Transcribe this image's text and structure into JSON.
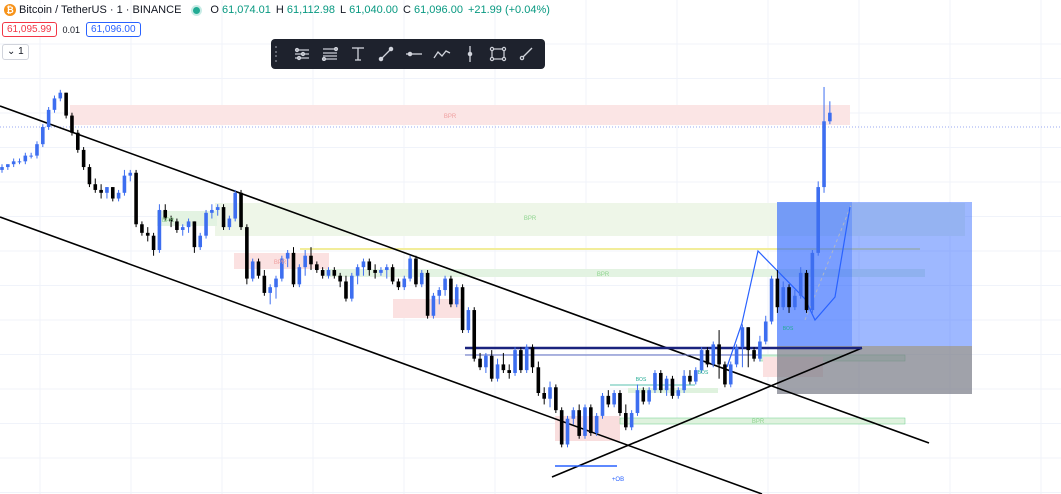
{
  "header": {
    "symbol": "Bitcoin / TetherUS · 1 · BINANCE",
    "open_label": "O",
    "open": "61,074.01",
    "high_label": "H",
    "high": "61,112.98",
    "low_label": "L",
    "low": "61,040.00",
    "close_label": "C",
    "close": "61,096.00",
    "change": "+21.99 (+0.04%)",
    "sell_price": "61,095.99",
    "spread": "0.01",
    "buy_price": "61,096.00",
    "interval_toggle": "1"
  },
  "colors": {
    "up": "#3d6ef0",
    "down": "#000000",
    "bpr": "#f4b9b9",
    "bullish_zone": "#dff2de",
    "position_target": "#2962ff",
    "position_stop": "#787b86",
    "trendline": "#000000"
  },
  "toolbar": {
    "tools": [
      "pitchfork-icon",
      "fib-retracement-icon",
      "text-icon",
      "trend-line-icon",
      "horizontal-line-icon",
      "path-icon",
      "vertical-line-icon",
      "rectangle-icon",
      "ray-icon"
    ]
  },
  "chart_data": {
    "type": "candlestick",
    "title": "Bitcoin / TetherUS · 1 · BINANCE",
    "xlabel": "",
    "ylabel": "",
    "y_scale": "price (no axis shown)",
    "ylim": [
      0,
      100
    ],
    "xlim": [
      0,
      150
    ],
    "grid": true,
    "annotations": [
      "BPR",
      "BPR",
      "BPR",
      "BPR",
      "BPR",
      "BPR",
      "BOS",
      "BOS",
      "BOS",
      "+OB"
    ],
    "candles": [
      [
        0,
        28,
        30,
        27,
        29
      ],
      [
        1,
        29,
        30,
        28,
        30
      ],
      [
        2,
        30,
        32,
        29,
        31
      ],
      [
        3,
        31,
        32,
        30,
        31
      ],
      [
        4,
        31,
        34,
        30,
        33
      ],
      [
        5,
        33,
        34,
        32,
        33
      ],
      [
        6,
        33,
        38,
        32,
        37
      ],
      [
        7,
        37,
        44,
        36,
        43
      ],
      [
        8,
        43,
        50,
        42,
        49
      ],
      [
        9,
        49,
        54,
        48,
        53
      ],
      [
        10,
        53,
        56,
        52,
        55
      ],
      [
        11,
        55,
        55,
        46,
        47
      ],
      [
        12,
        47,
        48,
        40,
        41
      ],
      [
        13,
        41,
        42,
        34,
        35
      ],
      [
        14,
        35,
        36,
        28,
        29
      ],
      [
        15,
        29,
        30,
        22,
        23
      ],
      [
        16,
        23,
        25,
        20,
        21
      ],
      [
        17,
        21,
        23,
        18,
        20
      ],
      [
        18,
        20,
        22,
        18,
        22
      ],
      [
        19,
        22,
        22,
        17,
        18
      ],
      [
        20,
        18,
        21,
        17,
        20
      ],
      [
        21,
        20,
        28,
        19,
        26
      ],
      [
        22,
        26,
        28,
        24,
        27
      ],
      [
        23,
        27,
        28,
        8,
        9
      ],
      [
        24,
        9,
        10,
        5,
        6
      ],
      [
        25,
        6,
        8,
        3,
        5
      ],
      [
        26,
        5,
        6,
        -2,
        0
      ],
      [
        27,
        0,
        16,
        -1,
        14
      ],
      [
        28,
        14,
        16,
        10,
        11
      ],
      [
        29,
        11,
        12,
        8,
        10
      ],
      [
        30,
        10,
        11,
        6,
        7
      ],
      [
        31,
        7,
        9,
        5,
        8
      ],
      [
        32,
        8,
        11,
        6,
        10
      ],
      [
        33,
        10,
        10,
        -1,
        1
      ],
      [
        34,
        1,
        6,
        0,
        5
      ],
      [
        35,
        5,
        14,
        4,
        13
      ],
      [
        36,
        13,
        16,
        11,
        14
      ],
      [
        37,
        14,
        16,
        12,
        15
      ],
      [
        38,
        15,
        16,
        7,
        8
      ],
      [
        39,
        8,
        12,
        7,
        11
      ],
      [
        40,
        11,
        21,
        10,
        20
      ],
      [
        41,
        20,
        21,
        7,
        8
      ],
      [
        42,
        8,
        9,
        -12,
        -10
      ],
      [
        43,
        -10,
        -3,
        -11,
        -4
      ],
      [
        44,
        -4,
        -3,
        -10,
        -9
      ],
      [
        45,
        -9,
        -7,
        -16,
        -15
      ],
      [
        46,
        -15,
        -12,
        -19,
        -13
      ],
      [
        47,
        -13,
        -9,
        -17,
        -10
      ],
      [
        48,
        -10,
        -2,
        -11,
        -3
      ],
      [
        49,
        -3,
        0,
        -6,
        -1
      ],
      [
        50,
        -1,
        1,
        -13,
        -12
      ],
      [
        51,
        -12,
        -5,
        -13,
        -6
      ],
      [
        52,
        -6,
        0,
        -9,
        -2
      ],
      [
        53,
        -2,
        1,
        -7,
        -5
      ],
      [
        54,
        -5,
        -4,
        -8,
        -7
      ],
      [
        55,
        -7,
        -6,
        -10,
        -9
      ],
      [
        56,
        -9,
        -6,
        -10,
        -7
      ],
      [
        57,
        -7,
        -6,
        -10,
        -9
      ],
      [
        58,
        -9,
        -8,
        -13,
        -11
      ],
      [
        59,
        -11,
        -9,
        -18,
        -17
      ],
      [
        60,
        -17,
        -8,
        -18,
        -9
      ],
      [
        61,
        -9,
        -5,
        -12,
        -6
      ],
      [
        62,
        -6,
        -3,
        -9,
        -4
      ],
      [
        63,
        -4,
        -3,
        -9,
        -7
      ],
      [
        64,
        -7,
        -5,
        -10,
        -8
      ],
      [
        65,
        -8,
        -6,
        -9,
        -7
      ],
      [
        66,
        -7,
        -5,
        -10,
        -6
      ],
      [
        67,
        -6,
        -5,
        -12,
        -11
      ],
      [
        68,
        -11,
        -10,
        -14,
        -13
      ],
      [
        69,
        -13,
        -9,
        -14,
        -10
      ],
      [
        70,
        -10,
        -2,
        -11,
        -3
      ],
      [
        71,
        -3,
        -2,
        -13,
        -12
      ],
      [
        72,
        -12,
        -7,
        -13,
        -8
      ],
      [
        73,
        -8,
        -7,
        -24,
        -23
      ],
      [
        74,
        -23,
        -15,
        -24,
        -16
      ],
      [
        75,
        -16,
        -13,
        -19,
        -14
      ],
      [
        76,
        -14,
        -9,
        -16,
        -10
      ],
      [
        77,
        -10,
        -9,
        -20,
        -19
      ],
      [
        78,
        -19,
        -12,
        -20,
        -13
      ],
      [
        79,
        -13,
        -12,
        -29,
        -28
      ],
      [
        80,
        -28,
        -20,
        -29,
        -21
      ],
      [
        81,
        -21,
        -20,
        -39,
        -38
      ],
      [
        82,
        -38,
        -36,
        -42,
        -41
      ],
      [
        83,
        -41,
        -36,
        -43,
        -37
      ],
      [
        84,
        -37,
        -35,
        -46,
        -45
      ],
      [
        85,
        -45,
        -38,
        -46,
        -40
      ],
      [
        86,
        -40,
        -36,
        -43,
        -42
      ],
      [
        87,
        -42,
        -40,
        -45,
        -43
      ],
      [
        88,
        -43,
        -34,
        -44,
        -35
      ],
      [
        89,
        -35,
        -34,
        -43,
        -42
      ],
      [
        90,
        -42,
        -33,
        -43,
        -34
      ],
      [
        91,
        -34,
        -33,
        -43,
        -41
      ],
      [
        92,
        -41,
        -39,
        -51,
        -50
      ],
      [
        93,
        -50,
        -48,
        -54,
        -52
      ],
      [
        94,
        -52,
        -46,
        -55,
        -48
      ],
      [
        95,
        -48,
        -47,
        -57,
        -56
      ],
      [
        96,
        -56,
        -55,
        -69,
        -68
      ],
      [
        97,
        -68,
        -58,
        -69,
        -59
      ],
      [
        98,
        -59,
        -55,
        -61,
        -56
      ],
      [
        99,
        -56,
        -54,
        -66,
        -65
      ],
      [
        100,
        -65,
        -54,
        -66,
        -55
      ],
      [
        101,
        -55,
        -54,
        -65,
        -64
      ],
      [
        102,
        -64,
        -57,
        -65,
        -58
      ],
      [
        103,
        -58,
        -50,
        -59,
        -51
      ],
      [
        104,
        -51,
        -49,
        -55,
        -54
      ],
      [
        105,
        -54,
        -49,
        -55,
        -50
      ],
      [
        106,
        -50,
        -49,
        -58,
        -57
      ],
      [
        107,
        -57,
        -54,
        -63,
        -62
      ],
      [
        108,
        -62,
        -56,
        -63,
        -57
      ],
      [
        109,
        -57,
        -47,
        -58,
        -49
      ],
      [
        110,
        -49,
        -48,
        -54,
        -53
      ],
      [
        111,
        -53,
        -48,
        -54,
        -49
      ],
      [
        112,
        -49,
        -42,
        -50,
        -43
      ],
      [
        113,
        -43,
        -42,
        -50,
        -49
      ],
      [
        114,
        -49,
        -44,
        -51,
        -45
      ],
      [
        115,
        -45,
        -44,
        -52,
        -51
      ],
      [
        116,
        -51,
        -48,
        -52,
        -49
      ],
      [
        117,
        -49,
        -42,
        -50,
        -44
      ],
      [
        118,
        -44,
        -42,
        -47,
        -46
      ],
      [
        119,
        -46,
        -41,
        -47,
        -42
      ],
      [
        120,
        -42,
        -34,
        -43,
        -35
      ],
      [
        121,
        -35,
        -34,
        -41,
        -40
      ],
      [
        122,
        -40,
        -32,
        -41,
        -33
      ],
      [
        123,
        -33,
        -28,
        -45,
        -40
      ],
      [
        124,
        -40,
        -39,
        -48,
        -47
      ],
      [
        125,
        -47,
        -39,
        -48,
        -40
      ],
      [
        126,
        -40,
        -33,
        -41,
        -34
      ],
      [
        127,
        -34,
        -26,
        -41,
        -27
      ],
      [
        128,
        -27,
        -27,
        -41,
        -35
      ],
      [
        129,
        -35,
        -34,
        -39,
        -38
      ],
      [
        130,
        -38,
        -30,
        -39,
        -32
      ],
      [
        131,
        -32,
        -23,
        -33,
        -25
      ],
      [
        132,
        -25,
        -9,
        -26,
        -10
      ],
      [
        133,
        -10,
        -7,
        -22,
        -20
      ],
      [
        134,
        -20,
        -11,
        -21,
        -13
      ],
      [
        135,
        -13,
        -12,
        -22,
        -20
      ],
      [
        136,
        -20,
        -14,
        -21,
        -16
      ],
      [
        137,
        -16,
        -6,
        -17,
        -8
      ],
      [
        138,
        -8,
        -7,
        -22,
        -21
      ],
      [
        139,
        -21,
        0,
        -22,
        -1
      ],
      [
        140,
        -1,
        24,
        -2,
        22
      ],
      [
        141,
        22,
        57,
        20,
        45
      ],
      [
        142,
        45,
        52,
        44,
        48
      ]
    ]
  }
}
